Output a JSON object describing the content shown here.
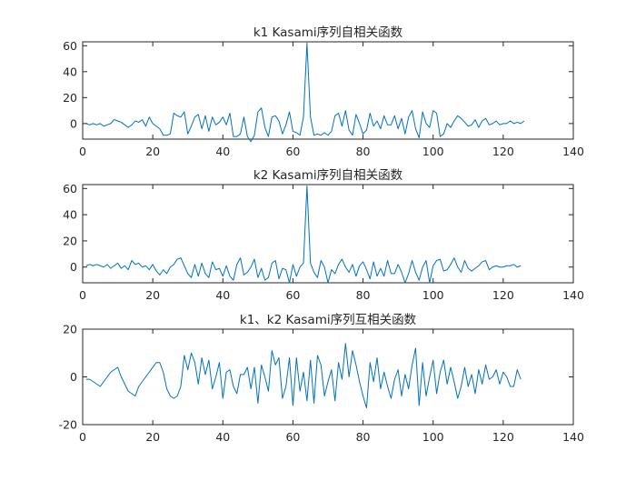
{
  "chart_data": [
    {
      "type": "line",
      "title": "k1 Kasami序列自相关函数",
      "xlabel": "",
      "ylabel": "",
      "xlim": [
        0,
        140
      ],
      "ylim": [
        -12,
        63
      ],
      "xticks": [
        0,
        20,
        40,
        60,
        80,
        100,
        120,
        140
      ],
      "yticks": [
        0,
        20,
        40,
        60
      ],
      "series_color": "#0072BD",
      "x_start": 1,
      "values": [
        0,
        -1,
        0,
        -1,
        0,
        -2,
        -1,
        0,
        3,
        2,
        1,
        -1,
        -3,
        -1,
        2,
        1,
        3,
        -2,
        5,
        0,
        -2,
        -4,
        -9,
        -9,
        -8,
        8,
        6,
        5,
        9,
        -8,
        -2,
        5,
        7,
        -4,
        6,
        -6,
        5,
        -1,
        1,
        5,
        -1,
        8,
        -10,
        -10,
        -8,
        5,
        -10,
        -14,
        -9,
        9,
        12,
        -3,
        -10,
        5,
        6,
        2,
        -8,
        -1,
        9,
        -6,
        -7,
        -9,
        5,
        62,
        5,
        -9,
        -8,
        -9,
        -7,
        -9,
        -6,
        6,
        8,
        -2,
        10,
        -5,
        -9,
        7,
        0,
        -8,
        -5,
        8,
        -2,
        2,
        -4,
        6,
        -1,
        -1,
        6,
        -4,
        4,
        -8,
        5,
        10,
        -4,
        -11,
        9,
        0,
        -3,
        10,
        8,
        -10,
        -8,
        0,
        -3,
        2,
        6,
        4,
        1,
        -2,
        -1,
        3,
        -3,
        2,
        4,
        -1,
        0,
        2,
        -1,
        0,
        0,
        2,
        0,
        1,
        0,
        2
      ]
    },
    {
      "type": "line",
      "title": "k2 Kasami序列自相关函数",
      "xlabel": "",
      "ylabel": "",
      "xlim": [
        0,
        140
      ],
      "ylim": [
        -12,
        63
      ],
      "xticks": [
        0,
        20,
        40,
        60,
        80,
        100,
        120,
        140
      ],
      "yticks": [
        0,
        20,
        40,
        60
      ],
      "series_color": "#0072BD",
      "x_start": 1,
      "values": [
        1,
        2,
        1,
        2,
        1,
        0,
        2,
        -1,
        1,
        3,
        -1,
        1,
        -2,
        5,
        2,
        3,
        0,
        1,
        -2,
        2,
        -3,
        -6,
        -2,
        -5,
        0,
        2,
        6,
        7,
        1,
        -5,
        -8,
        2,
        -7,
        3,
        -5,
        -8,
        4,
        -2,
        -1,
        -7,
        1,
        -7,
        -10,
        2,
        7,
        -6,
        -4,
        0,
        6,
        -8,
        -1,
        -10,
        -8,
        3,
        5,
        -9,
        -1,
        -2,
        -12,
        2,
        -7,
        0,
        3,
        62,
        3,
        -4,
        -8,
        5,
        0,
        -12,
        -2,
        -5,
        2,
        6,
        0,
        -4,
        2,
        -7,
        1,
        4,
        -2,
        -9,
        4,
        -7,
        -1,
        -7,
        5,
        -5,
        -5,
        2,
        -4,
        -12,
        -5,
        5,
        -4,
        -10,
        0,
        5,
        -12,
        1,
        5,
        6,
        -3,
        -2,
        2,
        7,
        0,
        -4,
        5,
        -1,
        -3,
        -1,
        1,
        4,
        5,
        -2,
        0,
        1,
        0,
        0,
        1,
        1,
        2,
        0,
        1
      ]
    },
    {
      "type": "line",
      "title": "k1、k2 Kasami序列互相关函数",
      "xlabel": "",
      "ylabel": "",
      "xlim": [
        0,
        140
      ],
      "ylim": [
        -20,
        20
      ],
      "xticks": [
        0,
        20,
        40,
        60,
        80,
        100,
        120,
        140
      ],
      "yticks": [
        -20,
        0,
        20
      ],
      "series_color": "#0072BD",
      "x_start": 1,
      "values": [
        -1,
        -1,
        -2,
        -3,
        -4,
        -2,
        0,
        2,
        3,
        4,
        0,
        -3,
        -6,
        -7,
        -8,
        -4,
        -2,
        0,
        2,
        4,
        6,
        6,
        2,
        -5,
        -8,
        -9,
        -8,
        -4,
        9,
        3,
        10,
        6,
        -3,
        8,
        1,
        7,
        -5,
        0,
        6,
        -9,
        2,
        3,
        -4,
        -7,
        1,
        1,
        4,
        -5,
        4,
        -11,
        5,
        0,
        -6,
        11,
        5,
        8,
        -9,
        -4,
        8,
        -12,
        8,
        -6,
        2,
        -10,
        7,
        -11,
        9,
        5,
        -8,
        -2,
        3,
        -10,
        6,
        -1,
        14,
        0,
        11,
        5,
        -2,
        -8,
        -13,
        6,
        -2,
        8,
        -5,
        2,
        -4,
        -9,
        -1,
        3,
        -8,
        1,
        -5,
        5,
        12,
        -12,
        6,
        -8,
        0,
        7,
        -7,
        2,
        7,
        -3,
        4,
        -2,
        -9,
        -4,
        4,
        -4,
        1,
        -7,
        3,
        -3,
        5,
        -1,
        0,
        3,
        -3,
        2,
        0,
        -4,
        -4,
        3,
        -1
      ]
    }
  ]
}
